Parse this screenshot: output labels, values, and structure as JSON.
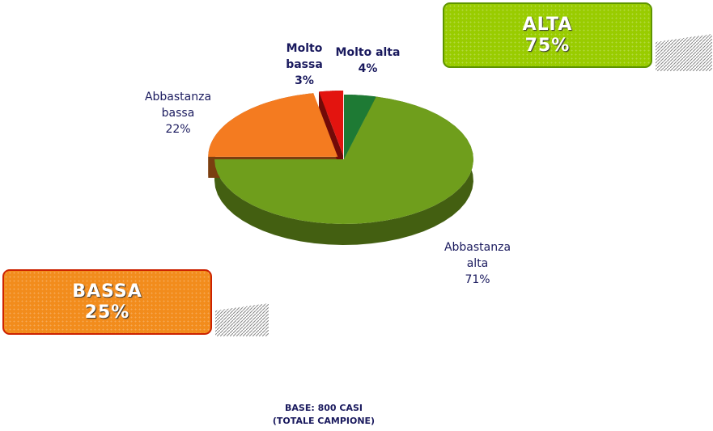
{
  "chart_data": {
    "type": "pie",
    "categories": [
      "Molto alta",
      "Abbastanza alta",
      "Abbastanza bassa",
      "Molto bassa"
    ],
    "values": [
      4,
      71,
      22,
      3
    ],
    "value_labels": [
      "4%",
      "71%",
      "22%",
      "3%"
    ],
    "colors": [
      "#1e7a34",
      "#6f9e1c",
      "#f47b20",
      "#e3140f"
    ],
    "annotations": [
      {
        "title": "ALTA",
        "text": "75%",
        "color": "#99cc00"
      },
      {
        "title": "BASSA",
        "text": "25%",
        "color": "#f28c1c"
      }
    ],
    "footnote": [
      "BASE: 800 CASI",
      "(TOTALE CAMPIONE)"
    ]
  }
}
